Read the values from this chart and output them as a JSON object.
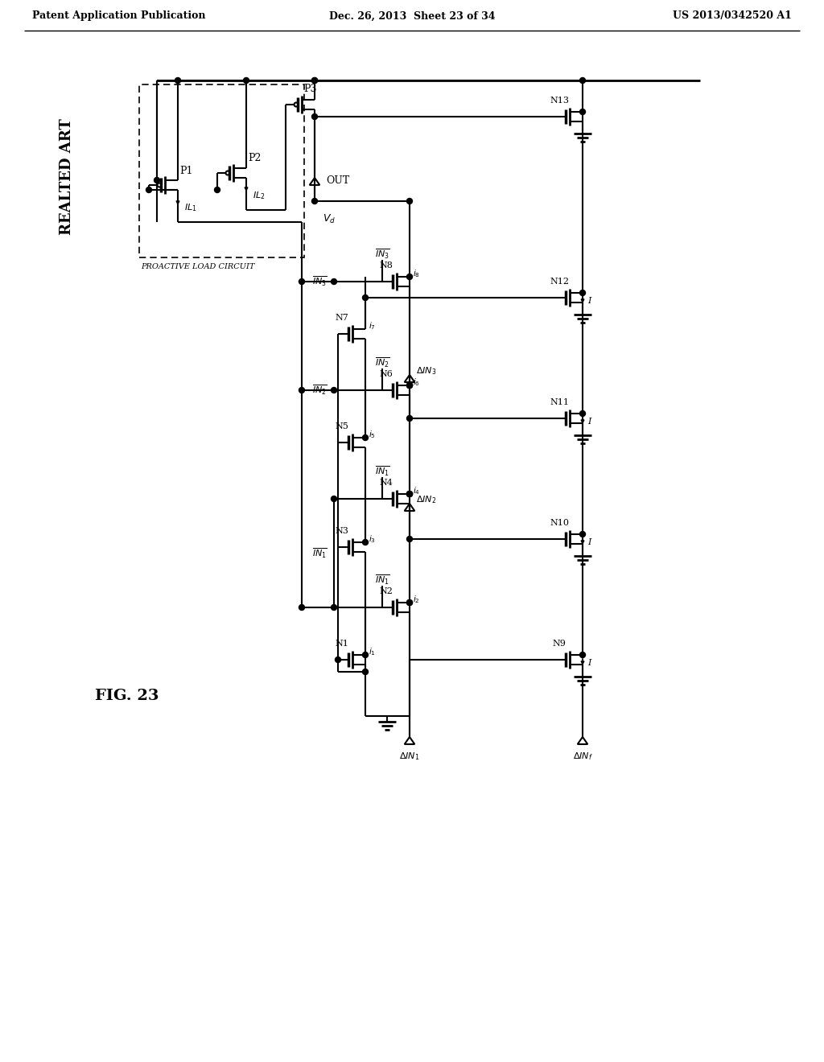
{
  "header_left": "Patent Application Publication",
  "header_mid": "Dec. 26, 2013  Sheet 23 of 34",
  "header_right": "US 2013/0342520 A1",
  "fig_label": "FIG. 23",
  "realted_art": "REALTED ART",
  "proactive_label": "PROACTIVE LOAD CIRCUIT"
}
